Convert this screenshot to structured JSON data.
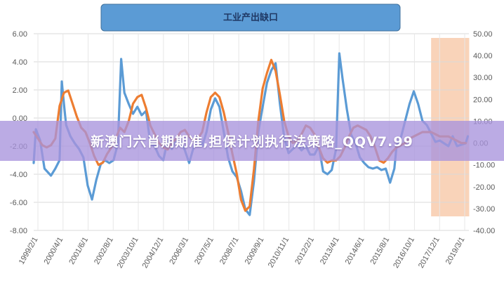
{
  "chart_data": {
    "type": "line",
    "title": "工业产出缺口",
    "left_axis": {
      "ylim": [
        -8,
        6
      ],
      "ticks": [
        "6.00",
        "4.00",
        "2.00",
        "0.00",
        "-2.00",
        "-4.00",
        "-6.00",
        "-8.00"
      ]
    },
    "right_axis": {
      "ylim": [
        -40,
        50
      ],
      "ticks": [
        "50.00",
        "40.00",
        "30.00",
        "20.00",
        "10.00",
        "0.00",
        "-10.00",
        "-20.00",
        "-30.00",
        "-40.00"
      ]
    },
    "x_ticks": [
      "1999/2/1",
      "2000/4/1",
      "2001/6/1",
      "2002/8/1",
      "2003/10/1",
      "2004/12/1",
      "2006/3/1",
      "2007/5/1",
      "2008/7/1",
      "2009/9/1",
      "2010/11/1",
      "2012/2/1",
      "2013/4/1",
      "2014/6/1",
      "2015/8/1",
      "2016/10/1",
      "2017/12/1",
      "2019/3/1"
    ],
    "shaded_region": {
      "from": 2017.5,
      "to": 2019.2,
      "color": "#f8cbad"
    },
    "grid": true,
    "series": [
      {
        "axis": "left",
        "color": "#5b9bd5",
        "points": [
          [
            1999.1,
            -3.2
          ],
          [
            1999.2,
            -0.8
          ],
          [
            1999.4,
            -1.6
          ],
          [
            1999.6,
            -3.6
          ],
          [
            1999.9,
            -4.1
          ],
          [
            2000.1,
            -3.6
          ],
          [
            2000.3,
            -3.0
          ],
          [
            2000.4,
            2.6
          ],
          [
            2000.5,
            1.0
          ],
          [
            2000.6,
            -0.5
          ],
          [
            2000.8,
            -1.3
          ],
          [
            2001.0,
            -1.8
          ],
          [
            2001.2,
            -2.2
          ],
          [
            2001.4,
            -2.8
          ],
          [
            2001.6,
            -4.8
          ],
          [
            2001.8,
            -5.8
          ],
          [
            2002.0,
            -4.4
          ],
          [
            2002.2,
            -3.3
          ],
          [
            2002.4,
            -3.0
          ],
          [
            2002.6,
            -3.2
          ],
          [
            2002.8,
            -3.0
          ],
          [
            2003.0,
            -1.8
          ],
          [
            2003.15,
            4.2
          ],
          [
            2003.3,
            1.8
          ],
          [
            2003.5,
            1.0
          ],
          [
            2003.7,
            0.3
          ],
          [
            2003.9,
            0.8
          ],
          [
            2004.1,
            0.2
          ],
          [
            2004.3,
            0.5
          ],
          [
            2004.5,
            -1.8
          ],
          [
            2004.7,
            -2.0
          ],
          [
            2004.9,
            -2.7
          ],
          [
            2005.1,
            -3.0
          ],
          [
            2005.3,
            -1.6
          ],
          [
            2005.5,
            -2.2
          ],
          [
            2005.7,
            -1.5
          ],
          [
            2005.9,
            -1.6
          ],
          [
            2006.1,
            -2.3
          ],
          [
            2006.3,
            -3.2
          ],
          [
            2006.5,
            -2.1
          ],
          [
            2006.7,
            -1.3
          ],
          [
            2006.9,
            -2.0
          ],
          [
            2007.1,
            -1.0
          ],
          [
            2007.3,
            0.6
          ],
          [
            2007.5,
            1.4
          ],
          [
            2007.7,
            0.8
          ],
          [
            2007.9,
            -1.0
          ],
          [
            2008.1,
            -2.8
          ],
          [
            2008.3,
            -3.8
          ],
          [
            2008.5,
            -4.2
          ],
          [
            2008.7,
            -5.2
          ],
          [
            2008.9,
            -6.5
          ],
          [
            2009.1,
            -6.9
          ],
          [
            2009.3,
            -4.5
          ],
          [
            2009.5,
            -1.0
          ],
          [
            2009.7,
            0.8
          ],
          [
            2009.9,
            2.5
          ],
          [
            2010.1,
            3.4
          ],
          [
            2010.3,
            3.9
          ],
          [
            2010.5,
            1.0
          ],
          [
            2010.7,
            -1.4
          ],
          [
            2010.9,
            -2.5
          ],
          [
            2011.1,
            -2.2
          ],
          [
            2011.3,
            -1.9
          ],
          [
            2011.5,
            -2.3
          ],
          [
            2011.7,
            -2.0
          ],
          [
            2011.9,
            -2.6
          ],
          [
            2012.1,
            -2.6
          ],
          [
            2012.3,
            -2.0
          ],
          [
            2012.5,
            -3.8
          ],
          [
            2012.7,
            -4.0
          ],
          [
            2012.9,
            -3.7
          ],
          [
            2013.1,
            -2.2
          ],
          [
            2013.25,
            4.6
          ],
          [
            2013.4,
            2.8
          ],
          [
            2013.6,
            0.6
          ],
          [
            2013.8,
            -1.2
          ],
          [
            2014.0,
            -1.8
          ],
          [
            2014.2,
            -2.8
          ],
          [
            2014.4,
            -3.2
          ],
          [
            2014.6,
            -3.5
          ],
          [
            2014.8,
            -3.6
          ],
          [
            2015.0,
            -3.5
          ],
          [
            2015.2,
            -3.7
          ],
          [
            2015.4,
            -3.6
          ],
          [
            2015.6,
            -4.6
          ],
          [
            2015.8,
            -3.6
          ],
          [
            2015.9,
            -2.0
          ],
          [
            2016.1,
            -1.4
          ],
          [
            2016.3,
            -0.2
          ],
          [
            2016.5,
            1.0
          ],
          [
            2016.7,
            1.9
          ],
          [
            2016.9,
            1.0
          ],
          [
            2017.1,
            -0.2
          ],
          [
            2017.3,
            -0.5
          ],
          [
            2017.5,
            -1.1
          ],
          [
            2017.7,
            -1.7
          ],
          [
            2017.9,
            -1.6
          ],
          [
            2018.1,
            -1.8
          ],
          [
            2018.3,
            -2.0
          ],
          [
            2018.5,
            -1.3
          ],
          [
            2018.7,
            -2.0
          ],
          [
            2018.9,
            -1.9
          ],
          [
            2019.1,
            -1.8
          ],
          [
            2019.2,
            -1.3
          ]
        ]
      },
      {
        "axis": "right",
        "color": "#ed7d31",
        "points": [
          [
            1999.1,
            5
          ],
          [
            1999.3,
            2
          ],
          [
            1999.5,
            -1
          ],
          [
            1999.7,
            -2
          ],
          [
            1999.9,
            -1
          ],
          [
            2000.1,
            2
          ],
          [
            2000.3,
            17
          ],
          [
            2000.5,
            23
          ],
          [
            2000.7,
            24
          ],
          [
            2000.9,
            18
          ],
          [
            2001.1,
            12
          ],
          [
            2001.3,
            7
          ],
          [
            2001.5,
            5
          ],
          [
            2001.7,
            0
          ],
          [
            2001.9,
            -6
          ],
          [
            2002.1,
            -10
          ],
          [
            2002.3,
            -9
          ],
          [
            2002.5,
            -5
          ],
          [
            2002.7,
            -2
          ],
          [
            2002.9,
            2
          ],
          [
            2003.1,
            7
          ],
          [
            2003.3,
            5
          ],
          [
            2003.5,
            10
          ],
          [
            2003.7,
            18
          ],
          [
            2003.9,
            21
          ],
          [
            2004.1,
            22
          ],
          [
            2004.3,
            16
          ],
          [
            2004.5,
            8
          ],
          [
            2004.7,
            4
          ],
          [
            2004.9,
            0
          ],
          [
            2005.1,
            -2
          ],
          [
            2005.3,
            -3
          ],
          [
            2005.5,
            0
          ],
          [
            2005.7,
            2
          ],
          [
            2005.9,
            5
          ],
          [
            2006.1,
            6
          ],
          [
            2006.3,
            3
          ],
          [
            2006.5,
            1
          ],
          [
            2006.7,
            2
          ],
          [
            2006.9,
            5
          ],
          [
            2007.1,
            14
          ],
          [
            2007.3,
            21
          ],
          [
            2007.5,
            23
          ],
          [
            2007.7,
            21
          ],
          [
            2007.9,
            14
          ],
          [
            2008.1,
            5
          ],
          [
            2008.3,
            -5
          ],
          [
            2008.5,
            -14
          ],
          [
            2008.7,
            -26
          ],
          [
            2008.9,
            -31
          ],
          [
            2009.1,
            -29
          ],
          [
            2009.3,
            -12
          ],
          [
            2009.5,
            10
          ],
          [
            2009.7,
            25
          ],
          [
            2009.9,
            32
          ],
          [
            2010.1,
            38
          ],
          [
            2010.3,
            33
          ],
          [
            2010.5,
            22
          ],
          [
            2010.7,
            10
          ],
          [
            2010.9,
            3
          ],
          [
            2011.1,
            0
          ],
          [
            2011.3,
            1
          ],
          [
            2011.5,
            4
          ],
          [
            2011.7,
            8
          ],
          [
            2011.9,
            7
          ],
          [
            2012.1,
            4
          ],
          [
            2012.3,
            -2
          ],
          [
            2012.5,
            -7
          ],
          [
            2012.7,
            -9
          ],
          [
            2012.9,
            -8
          ],
          [
            2013.1,
            -8
          ],
          [
            2013.3,
            -6
          ],
          [
            2013.5,
            -2
          ],
          [
            2013.7,
            3
          ],
          [
            2013.9,
            7
          ],
          [
            2014.1,
            8
          ],
          [
            2014.3,
            7
          ],
          [
            2014.5,
            6
          ],
          [
            2014.7,
            3
          ],
          [
            2014.9,
            -2
          ],
          [
            2015.1,
            -8
          ],
          [
            2015.3,
            -9
          ],
          [
            2015.5,
            -7
          ],
          [
            2015.7,
            -4
          ],
          [
            2015.9,
            -2
          ],
          [
            2016.1,
            -1
          ],
          [
            2016.3,
            0
          ],
          [
            2016.5,
            2
          ],
          [
            2016.7,
            3
          ],
          [
            2016.9,
            4
          ],
          [
            2017.1,
            5
          ],
          [
            2017.3,
            5
          ],
          [
            2017.5,
            5
          ],
          [
            2017.7,
            4
          ],
          [
            2017.9,
            3
          ],
          [
            2018.1,
            3
          ],
          [
            2018.3,
            3
          ],
          [
            2018.5,
            2
          ],
          [
            2018.7,
            1
          ],
          [
            2018.9,
            0
          ],
          [
            2019.1,
            0
          ]
        ]
      }
    ]
  },
  "banner": {
    "text": "新澳门六肖期期准,担保计划执行法策略_QQV7.99"
  }
}
